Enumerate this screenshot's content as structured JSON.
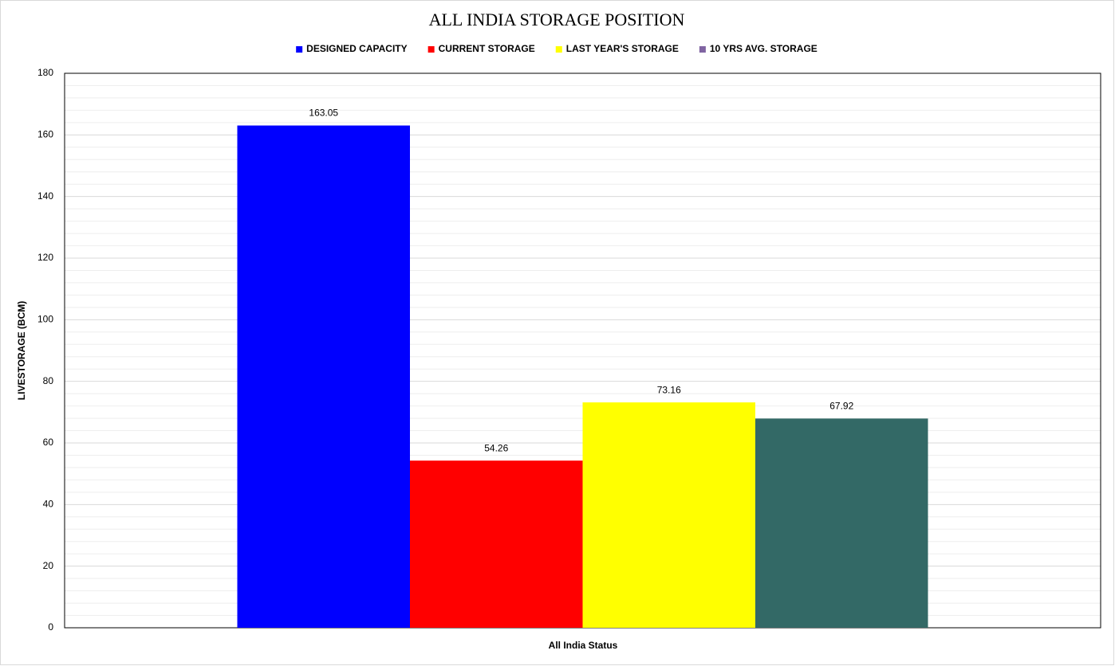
{
  "chart_data": {
    "type": "bar",
    "title": "ALL INDIA STORAGE POSITION",
    "y_label": "LIVESTORAGE (BCM)",
    "x_label": "All India Status",
    "categories": [
      null
    ],
    "series": [
      {
        "name": "DESIGNED CAPACITY",
        "color": "#0000ff",
        "values": [
          163.05
        ]
      },
      {
        "name": "CURRENT STORAGE",
        "color": "#ff0000",
        "values": [
          54.26
        ]
      },
      {
        "name": "LAST YEAR'S STORAGE",
        "color": "#ffff00",
        "values": [
          73.16
        ]
      },
      {
        "name": "10 YRS AVG. STORAGE",
        "color": "#336966",
        "legend_color": "#8064a2",
        "values": [
          67.92
        ]
      }
    ],
    "ylim": [
      0,
      180
    ],
    "yticks": [
      0,
      20,
      40,
      60,
      80,
      100,
      120,
      140,
      160,
      180
    ],
    "grid": true,
    "legend": "top"
  }
}
